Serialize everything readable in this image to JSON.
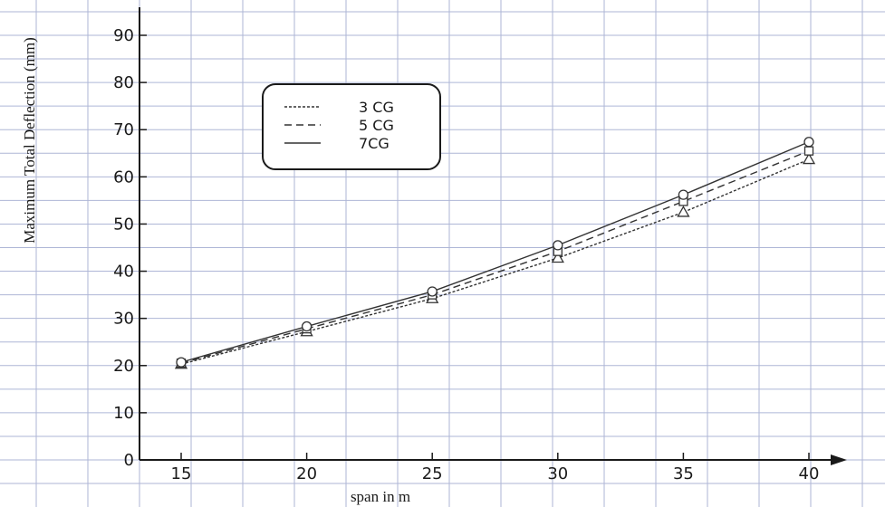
{
  "chart_data": {
    "type": "line",
    "xlabel": "span in m",
    "ylabel": "Maximum Total Deflection (mm)",
    "x": [
      15,
      20,
      25,
      30,
      35,
      40
    ],
    "xlim": [
      13,
      42
    ],
    "ylim": [
      0,
      93
    ],
    "x_ticks": [
      "15",
      "20",
      "25",
      "30",
      "35",
      "40"
    ],
    "y_ticks": [
      "0",
      "10",
      "20",
      "30",
      "40",
      "50",
      "60",
      "70",
      "80",
      "90"
    ],
    "grid": true,
    "legend_position": "top-left",
    "series": [
      {
        "name": "3 CG",
        "marker": "triangle",
        "line_style": "dotted",
        "values": [
          20.3,
          27.2,
          34.2,
          42.8,
          52.5,
          63.7
        ]
      },
      {
        "name": "5 CG",
        "marker": "square",
        "line_style": "dashed",
        "values": [
          20.5,
          27.8,
          35.0,
          44.2,
          54.8,
          65.5
        ]
      },
      {
        "name": "7CG",
        "marker": "circle",
        "line_style": "solid",
        "values": [
          20.7,
          28.3,
          35.7,
          45.5,
          56.2,
          67.4
        ]
      }
    ],
    "colors": {
      "line": "#333333",
      "grid": "#aeb6d6",
      "background": "#ffffff"
    }
  }
}
